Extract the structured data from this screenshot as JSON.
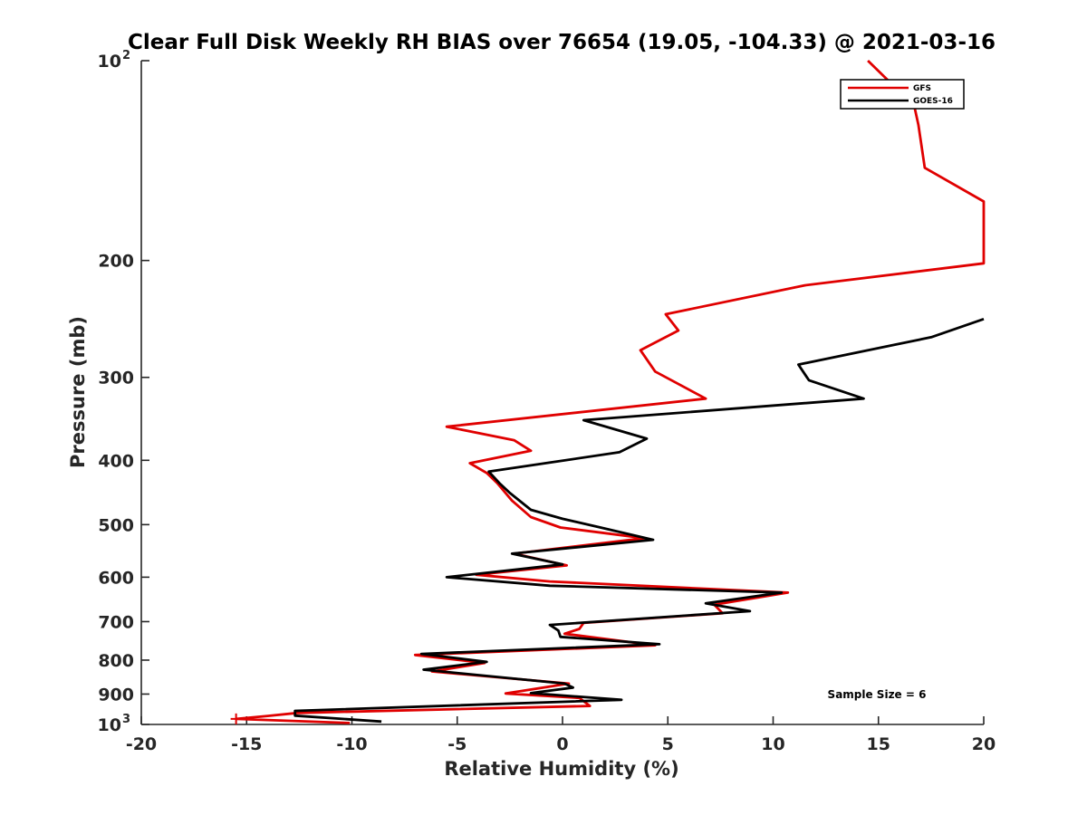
{
  "chart_data": {
    "type": "line",
    "title": "Clear Full Disk Weekly RH BIAS over 76654 (19.05, -104.33) @ 2021-03-16",
    "xlabel": "Relative Humidity (%)",
    "ylabel": "Pressure (mb)",
    "xlim": [
      -20,
      20
    ],
    "ylim": [
      100,
      1000
    ],
    "yscale": "log",
    "y_reversed": true,
    "x_ticks": [
      -20,
      -15,
      -10,
      -5,
      0,
      5,
      10,
      15,
      20
    ],
    "x_tick_labels": [
      "-20",
      "-15",
      "-10",
      "-5",
      "0",
      "5",
      "10",
      "15",
      "20"
    ],
    "y_ticks": [
      100,
      200,
      300,
      400,
      500,
      600,
      700,
      800,
      900,
      1000
    ],
    "y_tick_labels": [
      {
        "base": "10",
        "exp": "2"
      },
      {
        "base": "200",
        "exp": ""
      },
      {
        "base": "300",
        "exp": ""
      },
      {
        "base": "400",
        "exp": ""
      },
      {
        "base": "500",
        "exp": ""
      },
      {
        "base": "600",
        "exp": ""
      },
      {
        "base": "700",
        "exp": ""
      },
      {
        "base": "800",
        "exp": ""
      },
      {
        "base": "900",
        "exp": ""
      },
      {
        "base": "10",
        "exp": "3"
      }
    ],
    "legend": {
      "location": "top-right",
      "entries": [
        "GFS",
        "GOES-16"
      ]
    },
    "annotation": "Sample Size = 6",
    "series": [
      {
        "name": "GFS",
        "color": "#e00000",
        "points": [
          [
            14.5,
            100
          ],
          [
            16.7,
            117
          ],
          [
            16.9,
            125
          ],
          [
            17.2,
            145
          ],
          [
            20,
            163
          ],
          [
            20,
            202
          ],
          [
            11.5,
            218
          ],
          [
            4.9,
            241
          ],
          [
            5.5,
            255
          ],
          [
            3.7,
            273
          ],
          [
            4.4,
            294
          ],
          [
            6.8,
            323
          ],
          [
            -5.5,
            356
          ],
          [
            -2.3,
            373
          ],
          [
            -1.5,
            387
          ],
          [
            -4.4,
            404
          ],
          [
            -3.6,
            418
          ],
          [
            -3.1,
            433
          ],
          [
            -2.4,
            460
          ],
          [
            -1.5,
            487
          ],
          [
            -0.1,
            505
          ],
          [
            3.9,
            524
          ],
          [
            -2.3,
            553
          ],
          [
            0.2,
            576
          ],
          [
            -4.1,
            595
          ],
          [
            -0.6,
            609
          ],
          [
            10.7,
            633
          ],
          [
            7.2,
            660
          ],
          [
            7.6,
            680
          ],
          [
            1.0,
            703
          ],
          [
            0.8,
            718
          ],
          [
            0.1,
            730
          ],
          [
            4.4,
            760
          ],
          [
            -7.0,
            786
          ],
          [
            -3.7,
            808
          ],
          [
            -6.2,
            832
          ],
          [
            0.3,
            868
          ],
          [
            -2.7,
            898
          ],
          [
            0.8,
            912
          ],
          [
            1.3,
            938
          ],
          [
            -12.6,
            961
          ],
          [
            -14.0,
            971
          ],
          [
            -15.5,
            981
          ],
          [
            -10.1,
            995
          ]
        ]
      },
      {
        "name": "GOES-16",
        "color": "#000000",
        "points": [
          [
            20,
            245
          ],
          [
            17.5,
            261
          ],
          [
            11.2,
            287
          ],
          [
            11.7,
            303
          ],
          [
            14.3,
            323
          ],
          [
            1.0,
            348
          ],
          [
            4.0,
            371
          ],
          [
            2.7,
            389
          ],
          [
            -3.5,
            416
          ],
          [
            -3.0,
            433
          ],
          [
            -2.5,
            448
          ],
          [
            -1.5,
            475
          ],
          [
            0.0,
            490
          ],
          [
            1.8,
            505
          ],
          [
            4.3,
            527
          ],
          [
            -2.4,
            553
          ],
          [
            0.0,
            574
          ],
          [
            -5.5,
            600
          ],
          [
            -0.6,
            618
          ],
          [
            10.4,
            633
          ],
          [
            6.8,
            657
          ],
          [
            8.9,
            675
          ],
          [
            -0.6,
            708
          ],
          [
            -0.2,
            722
          ],
          [
            -0.1,
            738
          ],
          [
            4.6,
            757
          ],
          [
            -6.7,
            783
          ],
          [
            -3.6,
            805
          ],
          [
            -6.6,
            827
          ],
          [
            0.1,
            868
          ],
          [
            0.5,
            880
          ],
          [
            -1.5,
            897
          ],
          [
            2.8,
            918
          ],
          [
            -12.7,
            954
          ],
          [
            -12.7,
            970
          ],
          [
            -8.6,
            990
          ]
        ]
      }
    ]
  },
  "colors": {
    "gfs": "#e00000",
    "goes": "#000000",
    "axis": "#262626",
    "background": "#ffffff"
  }
}
